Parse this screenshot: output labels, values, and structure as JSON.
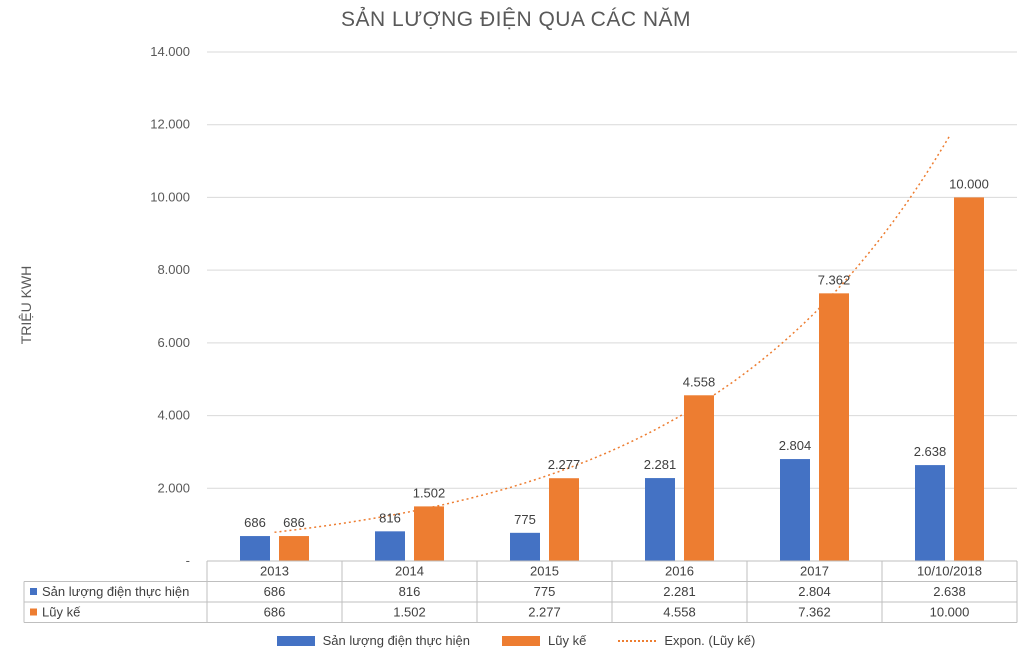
{
  "chart_data": {
    "type": "bar",
    "title": "SẢN LƯỢNG ĐIỆN QUA CÁC NĂM",
    "ylabel": "TRIỆU KWH",
    "xlabel": "",
    "ylim": [
      0,
      14000
    ],
    "yticks": [
      {
        "value": 0,
        "label": "-"
      },
      {
        "value": 2000,
        "label": "2.000"
      },
      {
        "value": 4000,
        "label": "4.000"
      },
      {
        "value": 6000,
        "label": "6.000"
      },
      {
        "value": 8000,
        "label": "8.000"
      },
      {
        "value": 10000,
        "label": "10.000"
      },
      {
        "value": 12000,
        "label": "12.000"
      },
      {
        "value": 14000,
        "label": "14.000"
      }
    ],
    "grid": true,
    "categories": [
      "2013",
      "2014",
      "2015",
      "2016",
      "2017",
      "10/10/2018"
    ],
    "series": [
      {
        "name": "Sản lượng điện thực hiện",
        "color": "#4472C4",
        "values": [
          686,
          816,
          775,
          2281,
          2804,
          2638
        ],
        "labels": [
          "686",
          "816",
          "775",
          "2.281",
          "2.804",
          "2.638"
        ]
      },
      {
        "name": "Lũy kế",
        "color": "#ED7D31",
        "values": [
          686,
          1502,
          2277,
          4558,
          7362,
          10000
        ],
        "labels": [
          "686",
          "1.502",
          "2.277",
          "4.558",
          "7.362",
          "10.000"
        ]
      }
    ],
    "trendline": {
      "name": "Expon. (Lũy kế)",
      "type": "exponential",
      "series": "Lũy kế",
      "color": "#ED7D31",
      "style": "dotted"
    },
    "data_table": true,
    "legend_position": "bottom"
  }
}
